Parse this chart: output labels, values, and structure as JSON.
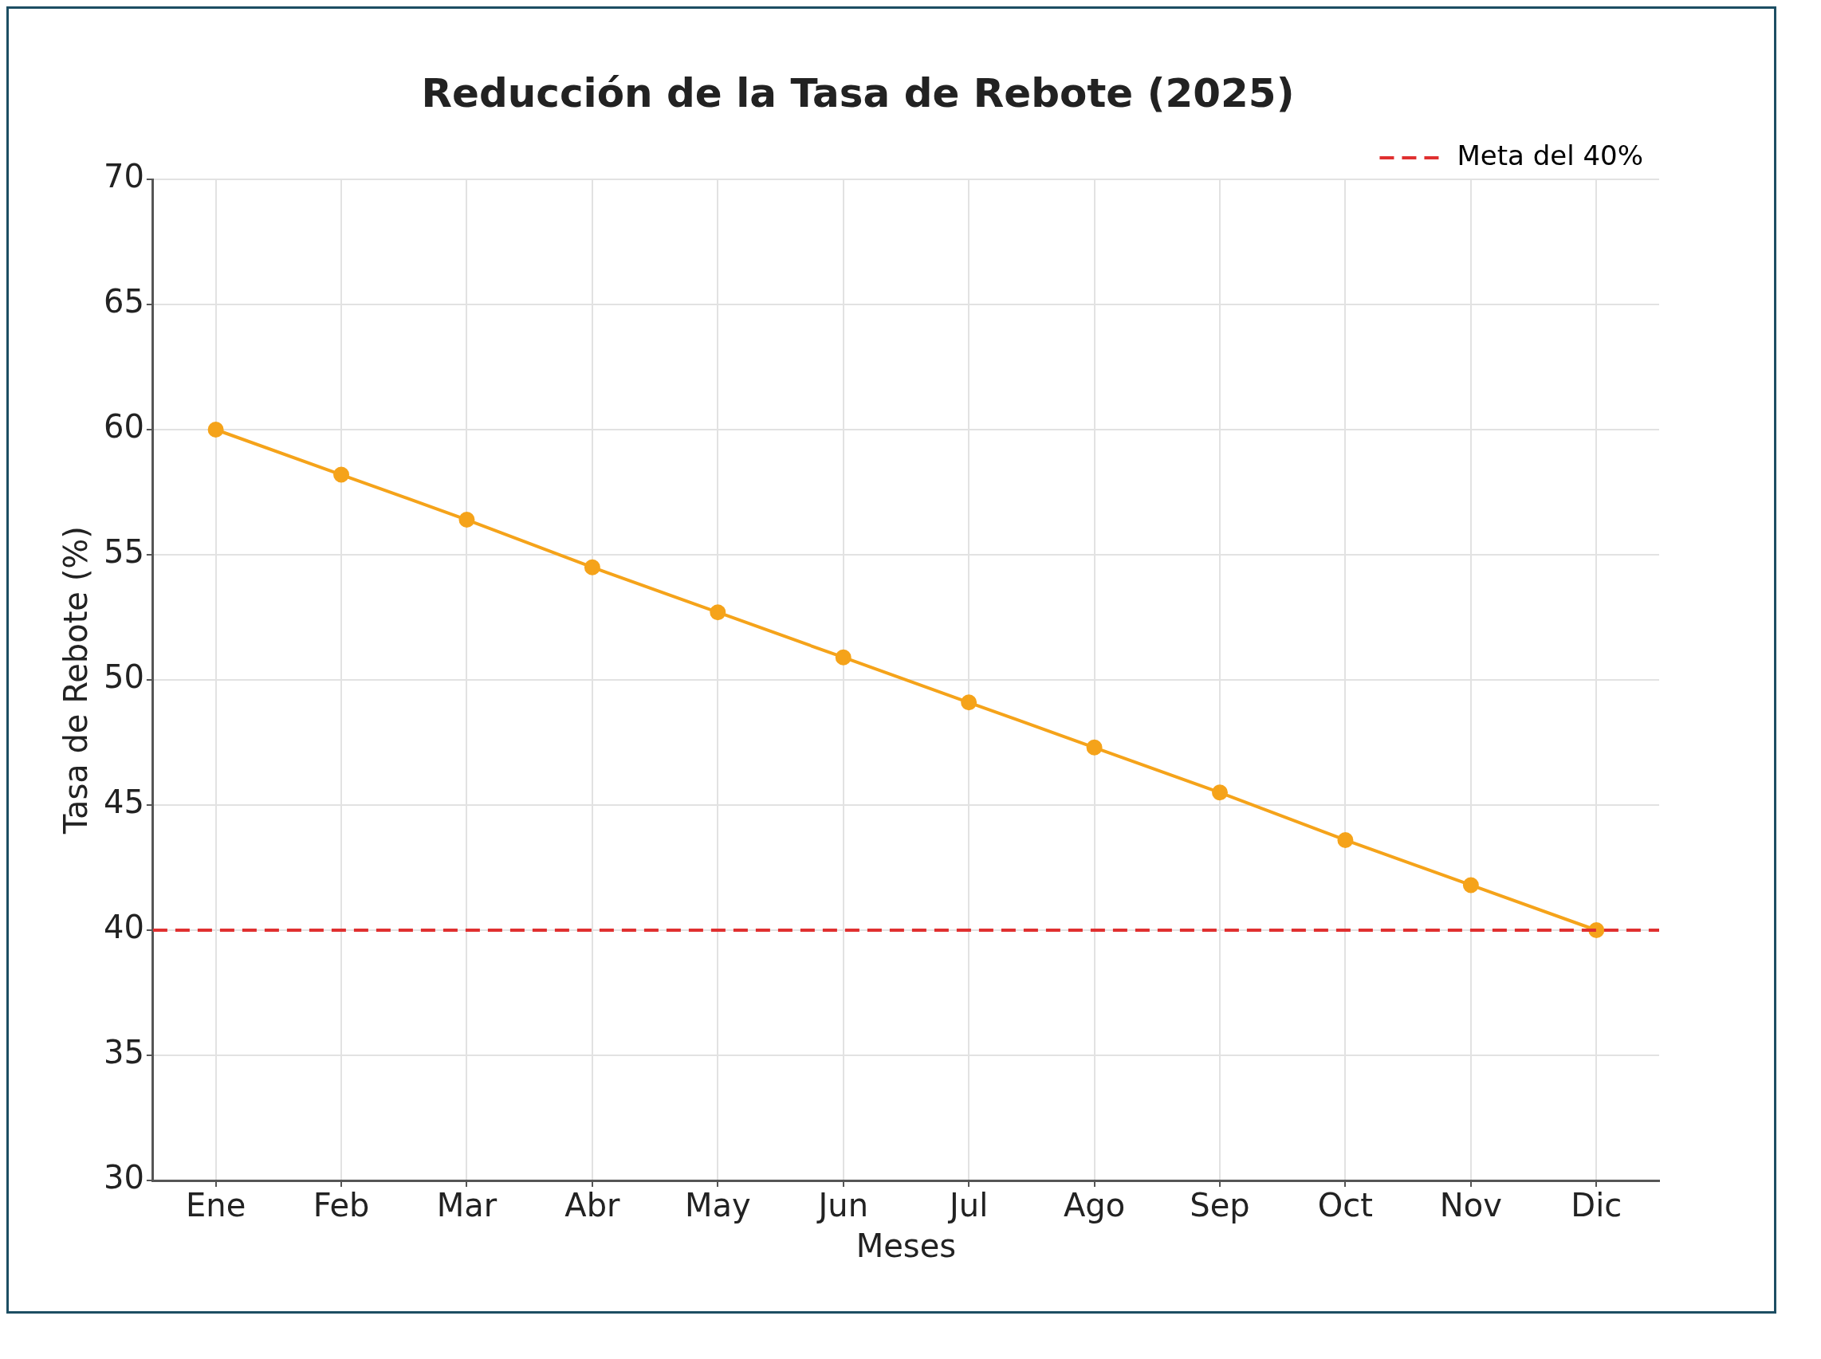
{
  "chart_data": {
    "type": "line",
    "title": "Reducción de la Tasa de Rebote (2025)",
    "xlabel": "Meses",
    "ylabel": "Tasa de Rebote (%)",
    "categories": [
      "Ene",
      "Feb",
      "Mar",
      "Abr",
      "May",
      "Jun",
      "Jul",
      "Ago",
      "Sep",
      "Oct",
      "Nov",
      "Dic"
    ],
    "series": [
      {
        "color": "#f5a31a",
        "values": [
          60,
          58.2,
          56.4,
          54.5,
          52.7,
          50.9,
          49.1,
          47.3,
          45.5,
          43.6,
          41.8,
          40
        ]
      }
    ],
    "ylim": [
      30,
      70
    ],
    "yticks": [
      30,
      35,
      40,
      45,
      50,
      55,
      60,
      65,
      70
    ],
    "ref_lines": [
      {
        "axis": "y",
        "value": 40,
        "label": "Meta del 40%",
        "color": "#e03030",
        "line_style": "dashed"
      }
    ],
    "grid": true,
    "legend": "top right",
    "marker": "circle",
    "line_style": "solid"
  }
}
